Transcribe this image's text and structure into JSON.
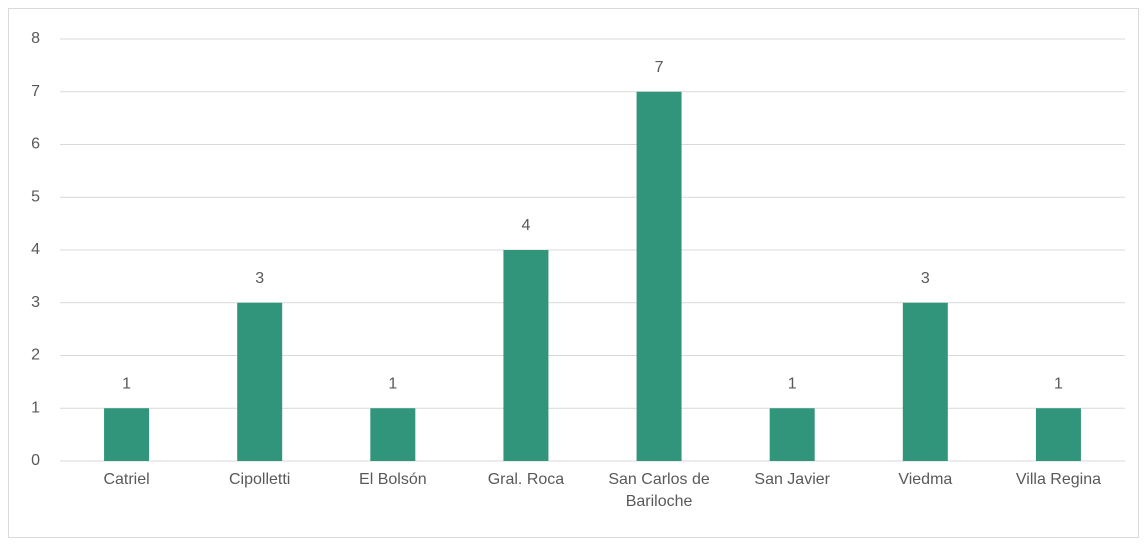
{
  "chart_data": {
    "type": "bar",
    "categories": [
      "Catriel",
      "Cipolletti",
      "El Bolsón",
      "Gral. Roca",
      "San Carlos de Bariloche",
      "San Javier",
      "Viedma",
      "Villa Regina"
    ],
    "values": [
      1,
      3,
      1,
      4,
      7,
      1,
      3,
      1
    ],
    "color": "#31957b",
    "ylim": [
      0,
      8
    ],
    "yticks": [
      0,
      1,
      2,
      3,
      4,
      5,
      6,
      7,
      8
    ],
    "grid": true
  }
}
